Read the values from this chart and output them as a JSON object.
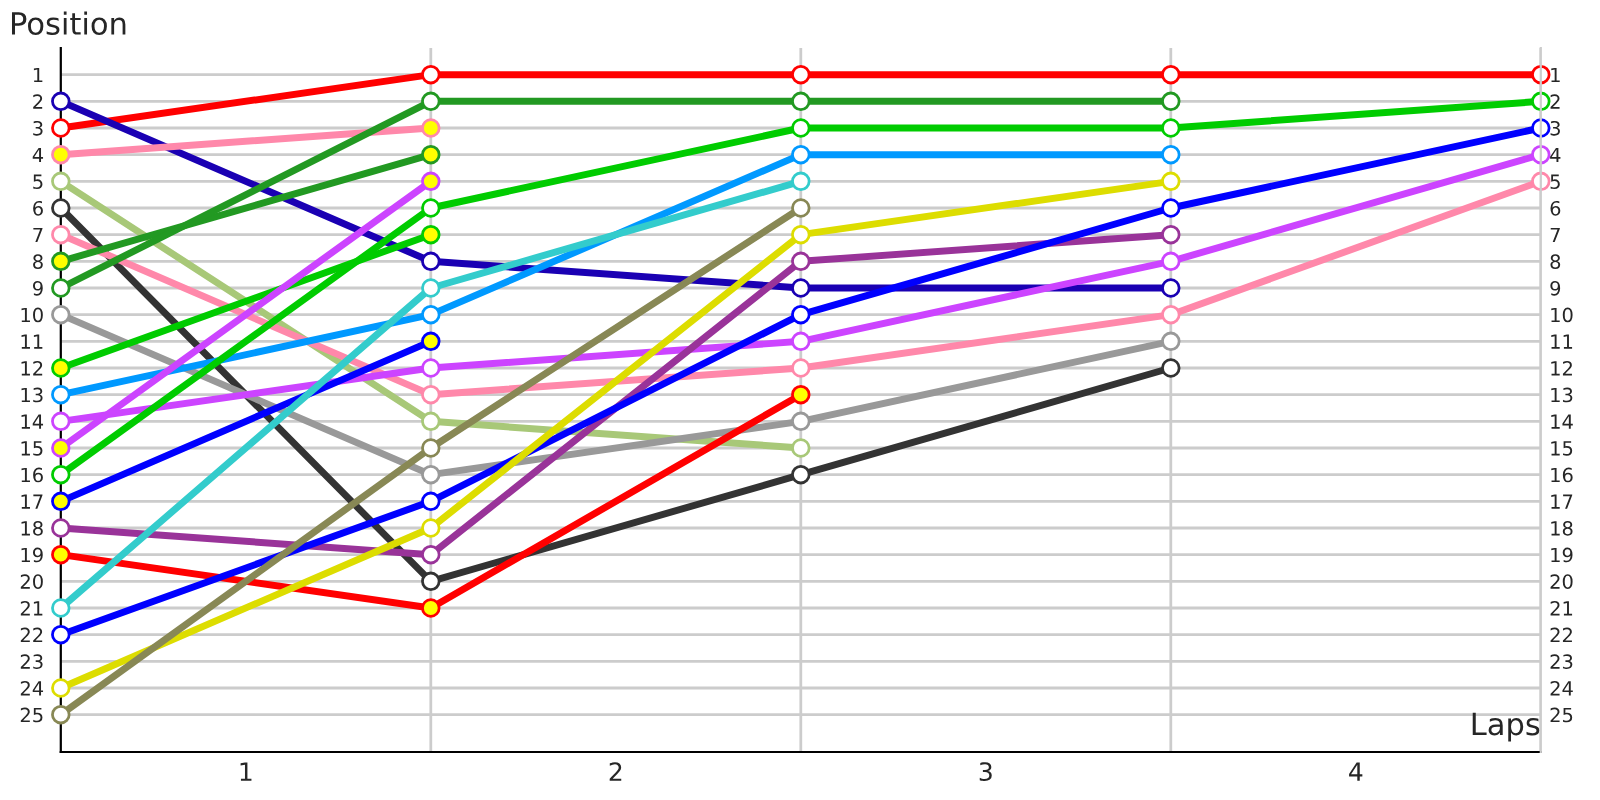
{
  "chart_data": {
    "type": "line",
    "ylabel": "Position",
    "xlabel": "Laps",
    "x": [
      0,
      1,
      2,
      3,
      4
    ],
    "xlim": [
      0,
      4
    ],
    "ylim": [
      26.4,
      0
    ],
    "xticks": [
      {
        "value": 0.5,
        "label": "1"
      },
      {
        "value": 1,
        "label": null
      },
      {
        "value": 1.5,
        "label": "2"
      },
      {
        "value": 2,
        "label": null
      },
      {
        "value": 2.5,
        "label": "3"
      },
      {
        "value": 3,
        "label": null
      },
      {
        "value": 3.5,
        "label": "4"
      },
      {
        "value": 4,
        "label": null
      }
    ],
    "yticks": [
      1,
      2,
      3,
      4,
      5,
      6,
      7,
      8,
      9,
      10,
      11,
      12,
      13,
      14,
      15,
      16,
      17,
      18,
      19,
      20,
      21,
      22,
      23,
      24,
      25
    ],
    "y2lim": [
      26.4,
      0
    ],
    "y2ticks": [
      1,
      2,
      3,
      4,
      5,
      6,
      7,
      8,
      9,
      10,
      11,
      12,
      13,
      14,
      15,
      16,
      17,
      18,
      19,
      20,
      21,
      22,
      23,
      24,
      25
    ],
    "grid": true,
    "marker": "circle",
    "line_style": "solid",
    "series": [
      {
        "color": "#ff0000",
        "values": [
          3,
          1,
          1,
          1,
          1
        ],
        "colors": [
          "#ffffff",
          "#ffffff",
          "#ffffff",
          "#ffffff",
          "#ffffff"
        ]
      },
      {
        "color": "#1a00b3",
        "values": [
          2,
          8,
          9,
          9,
          null
        ],
        "colors": [
          "#ffffff",
          "#ffffff",
          "#ffffff",
          "#ffffff",
          null
        ]
      },
      {
        "color": "#ff88aa",
        "values": [
          4,
          3,
          null,
          null,
          null
        ],
        "colors": [
          "#ffff00",
          "#ffff00",
          null,
          null,
          null
        ]
      },
      {
        "color": "#a8c878",
        "values": [
          5,
          14,
          15,
          null,
          null
        ],
        "colors": [
          "#ffffff",
          "#ffffff",
          "#ffffff",
          null,
          null
        ]
      },
      {
        "color": "#333333",
        "values": [
          6,
          20,
          16,
          12,
          null
        ],
        "colors": [
          "#ffffff",
          "#ffffff",
          "#ffffff",
          "#ffffff",
          null
        ]
      },
      {
        "color": "#ff88aa",
        "values": [
          7,
          13,
          12,
          10,
          5
        ],
        "colors": [
          "#ffffff",
          "#ffffff",
          "#ffffff",
          "#ffffff",
          "#ffffff"
        ]
      },
      {
        "color": "#229922",
        "values": [
          8,
          4,
          null,
          null,
          null
        ],
        "colors": [
          "#ffff00",
          "#ffff00",
          null,
          null,
          null
        ]
      },
      {
        "color": "#229922",
        "values": [
          9,
          2,
          2,
          2,
          null
        ],
        "colors": [
          "#ffffff",
          "#ffffff",
          "#ffffff",
          "#ffffff",
          null
        ]
      },
      {
        "color": "#999999",
        "values": [
          10,
          16,
          14,
          11,
          null
        ],
        "colors": [
          "#ffffff",
          "#ffffff",
          "#ffffff",
          "#ffffff",
          null
        ]
      },
      {
        "color": "#00cc00",
        "values": [
          12,
          7,
          null,
          null,
          null
        ],
        "colors": [
          "#ffff00",
          "#ffff00",
          null,
          null,
          null
        ]
      },
      {
        "color": "#0099ff",
        "values": [
          13,
          10,
          4,
          4,
          null
        ],
        "colors": [
          "#ffffff",
          "#ffffff",
          "#ffffff",
          "#ffffff",
          null
        ]
      },
      {
        "color": "#cc44ff",
        "values": [
          14,
          12,
          11,
          8,
          4
        ],
        "colors": [
          "#ffffff",
          "#ffffff",
          "#ffffff",
          "#ffffff",
          "#ffffff"
        ]
      },
      {
        "color": "#cc44ff",
        "values": [
          15,
          5,
          null,
          null,
          null
        ],
        "colors": [
          "#ffff00",
          "#ffff00",
          null,
          null,
          null
        ]
      },
      {
        "color": "#00cc00",
        "values": [
          16,
          6,
          3,
          3,
          2
        ],
        "colors": [
          "#ffffff",
          "#ffffff",
          "#ffffff",
          "#ffffff",
          "#ffffff"
        ]
      },
      {
        "color": "#0000ff",
        "values": [
          17,
          11,
          null,
          null,
          null
        ],
        "colors": [
          "#ffff00",
          "#ffff00",
          null,
          null,
          null
        ]
      },
      {
        "color": "#993399",
        "values": [
          18,
          19,
          8,
          7,
          null
        ],
        "colors": [
          "#ffffff",
          "#ffffff",
          "#ffffff",
          "#ffffff",
          null
        ]
      },
      {
        "color": "#ff0000",
        "values": [
          19,
          21,
          13,
          null,
          null
        ],
        "colors": [
          "#ffff00",
          "#ffff00",
          "#ffff00",
          null,
          null
        ]
      },
      {
        "color": "#33cccc",
        "values": [
          21,
          9,
          5,
          null,
          null
        ],
        "colors": [
          "#ffffff",
          "#ffffff",
          "#ffffff",
          null,
          null
        ]
      },
      {
        "color": "#0000ff",
        "values": [
          22,
          17,
          10,
          6,
          3
        ],
        "colors": [
          "#ffffff",
          "#ffffff",
          "#ffffff",
          "#ffffff",
          "#ffffff"
        ]
      },
      {
        "color": "#dddd00",
        "values": [
          24,
          18,
          7,
          5,
          null
        ],
        "colors": [
          "#ffffff",
          "#ffffff",
          "#ffffff",
          "#ffffff",
          null
        ]
      },
      {
        "color": "#888855",
        "values": [
          25,
          15,
          6,
          null,
          null
        ],
        "colors": [
          "#ffffff",
          "#ffffff",
          "#ffffff",
          null,
          null
        ]
      }
    ]
  }
}
